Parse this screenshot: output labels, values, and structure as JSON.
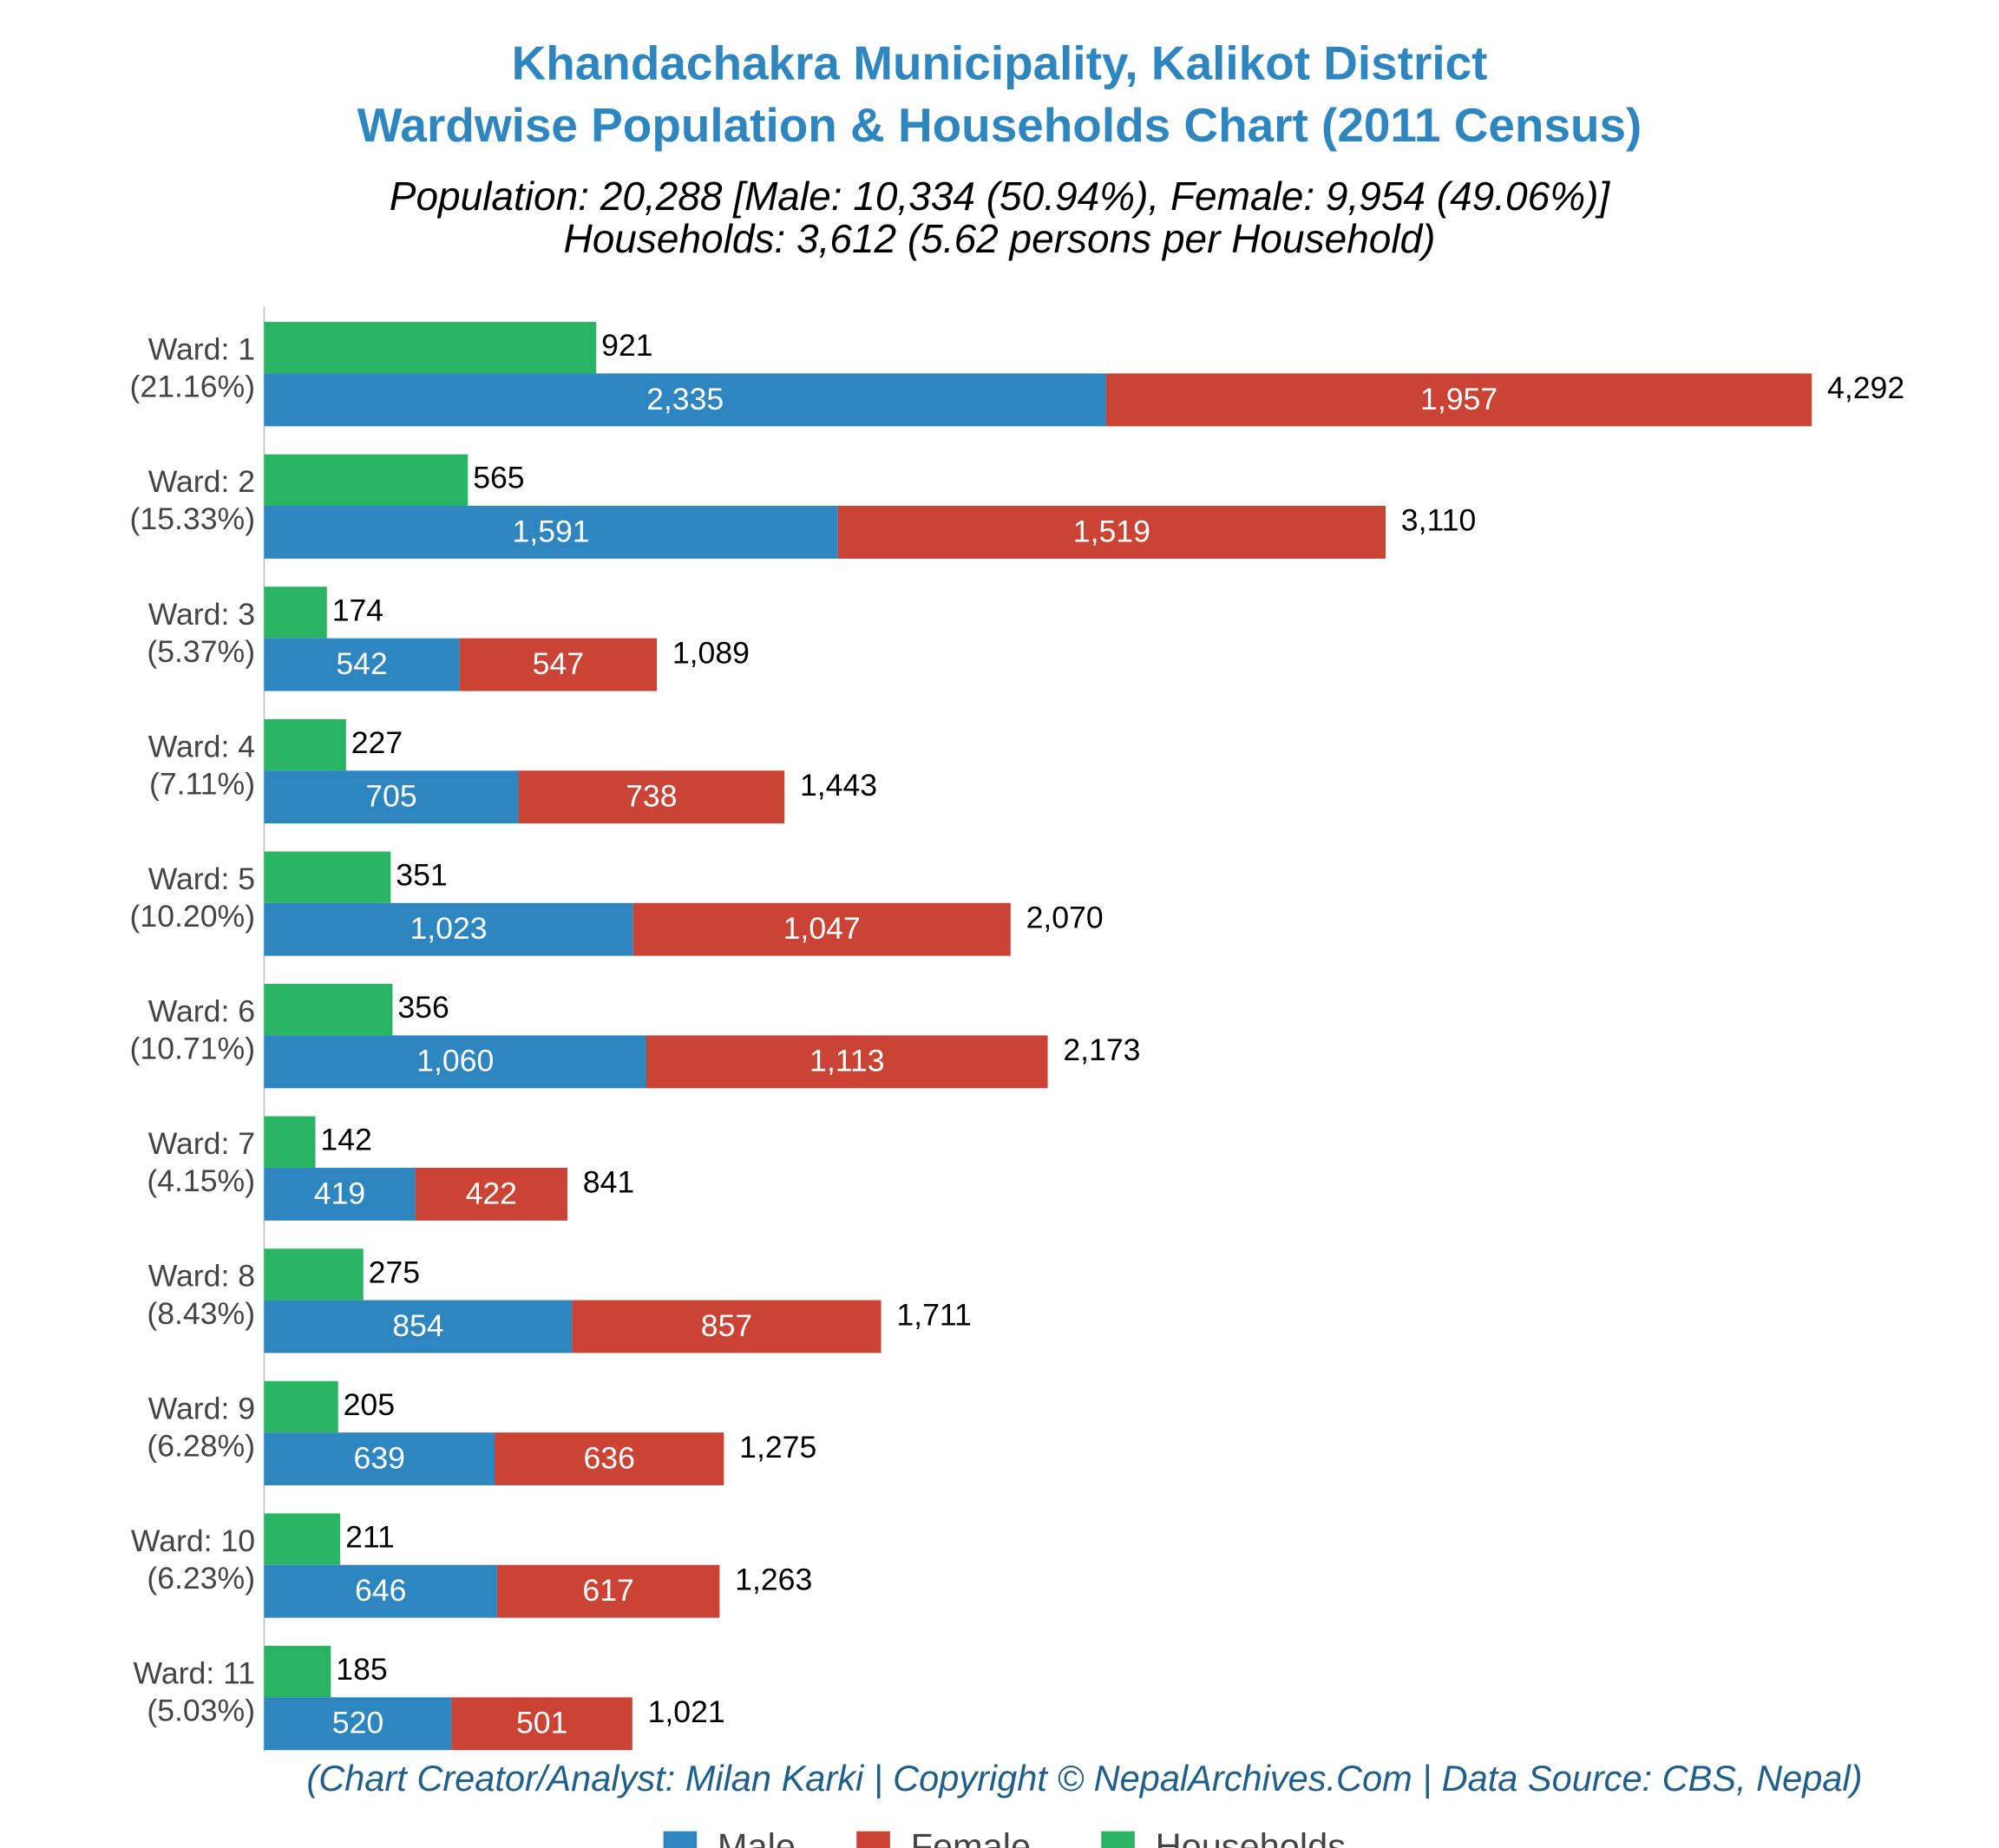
{
  "chart_data": {
    "type": "bar",
    "orientation": "horizontal",
    "title": [
      "Khandachakra Municipality, Kalikot District",
      "Wardwise Population & Households Chart (2011 Census)"
    ],
    "subtitle": [
      "Population: 20,288 [Male: 10,334 (50.94%), Female: 9,954 (49.06%)]",
      "Households: 3,612 (5.62 persons per Household)"
    ],
    "footnote": "(Chart Creator/Analyst: Milan Karki | Copyright © NepalArchives.Com | Data Source: CBS, Nepal)",
    "categories": [
      "Ward: 1",
      "Ward: 2",
      "Ward: 3",
      "Ward: 4",
      "Ward: 5",
      "Ward: 6",
      "Ward: 7",
      "Ward: 8",
      "Ward: 9",
      "Ward: 10",
      "Ward: 11"
    ],
    "category_shares": [
      "(21.16%)",
      "(15.33%)",
      "(5.37%)",
      "(7.11%)",
      "(10.20%)",
      "(10.71%)",
      "(4.15%)",
      "(8.43%)",
      "(6.28%)",
      "(6.23%)",
      "(5.03%)"
    ],
    "series": [
      {
        "name": "Male",
        "color": "#2e86c1",
        "stack": "population",
        "values": [
          2335,
          1591,
          542,
          705,
          1023,
          1060,
          419,
          854,
          639,
          646,
          520
        ],
        "value_labels": [
          "2,335",
          "1,591",
          "542",
          "705",
          "1,023",
          "1,060",
          "419",
          "854",
          "639",
          "646",
          "520"
        ]
      },
      {
        "name": "Female",
        "color": "#cb4335",
        "stack": "population",
        "values": [
          1957,
          1519,
          547,
          738,
          1047,
          1113,
          422,
          857,
          636,
          617,
          501
        ],
        "value_labels": [
          "1,957",
          "1,519",
          "547",
          "738",
          "1,047",
          "1,113",
          "422",
          "857",
          "636",
          "617",
          "501"
        ]
      },
      {
        "name": "Households",
        "color": "#28b463",
        "stack": "households",
        "values": [
          921,
          565,
          174,
          227,
          351,
          356,
          142,
          275,
          205,
          211,
          185
        ]
      }
    ],
    "totals": [
      4292,
      3110,
      1089,
      1443,
      2070,
      2173,
      841,
      1711,
      1275,
      1263,
      1021
    ],
    "total_labels": [
      "4,292",
      "3,110",
      "1,089",
      "1,443",
      "2,070",
      "2,173",
      "841",
      "1,711",
      "1,275",
      "1,263",
      "1,021"
    ],
    "xlim": [
      0,
      4700
    ],
    "legend": "bottom"
  }
}
